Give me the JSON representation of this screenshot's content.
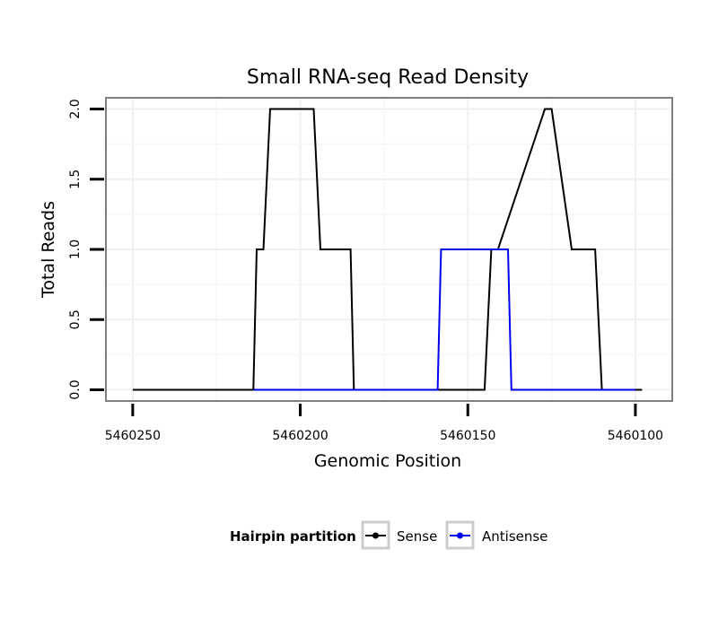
{
  "chart_data": {
    "type": "line",
    "title": "Small RNA-seq Read Density",
    "xlabel": "Genomic Position",
    "ylabel": "Total Reads",
    "x_reversed": true,
    "xlim": [
      5460258,
      5460089
    ],
    "ylim": [
      -0.08,
      2.08
    ],
    "grid": true,
    "x_ticks": [
      5460250,
      5460200,
      5460150,
      5460100
    ],
    "x_tick_labels": [
      "5460250",
      "5460200",
      "5460150",
      "5460100"
    ],
    "y_ticks": [
      0,
      0.5,
      1,
      1.5,
      2
    ],
    "y_tick_labels": [
      "0.0",
      "0.5",
      "1.0",
      "1.5",
      "2.0"
    ],
    "legend_position": "bottom",
    "legend": {
      "title": "Hairpin partition",
      "items": [
        {
          "label": "Sense",
          "color": "#000000"
        },
        {
          "label": "Antisense",
          "color": "#0000ee"
        }
      ]
    },
    "series": [
      {
        "name": "Sense",
        "color": "#000000",
        "x": [
          5460250,
          5460214,
          5460213,
          5460211,
          5460209,
          5460196,
          5460194,
          5460185,
          5460184,
          5460172,
          5460167,
          5460159,
          5460158,
          5460146,
          5460145,
          5460143,
          5460141,
          5460127,
          5460125,
          5460119,
          5460116,
          5460112,
          5460110,
          5460098
        ],
        "y": [
          0,
          0,
          1,
          1,
          2,
          2,
          1,
          1,
          0,
          0,
          0,
          0,
          0,
          0,
          0,
          1,
          1,
          2,
          2,
          1,
          1,
          1,
          0,
          0
        ]
      },
      {
        "name": "Antisense",
        "color": "#0000ee",
        "x": [
          5460214,
          5460159,
          5460158,
          5460138,
          5460137,
          5460125,
          5460100
        ],
        "y": [
          0,
          0,
          1,
          1,
          0,
          0,
          0
        ]
      }
    ]
  }
}
